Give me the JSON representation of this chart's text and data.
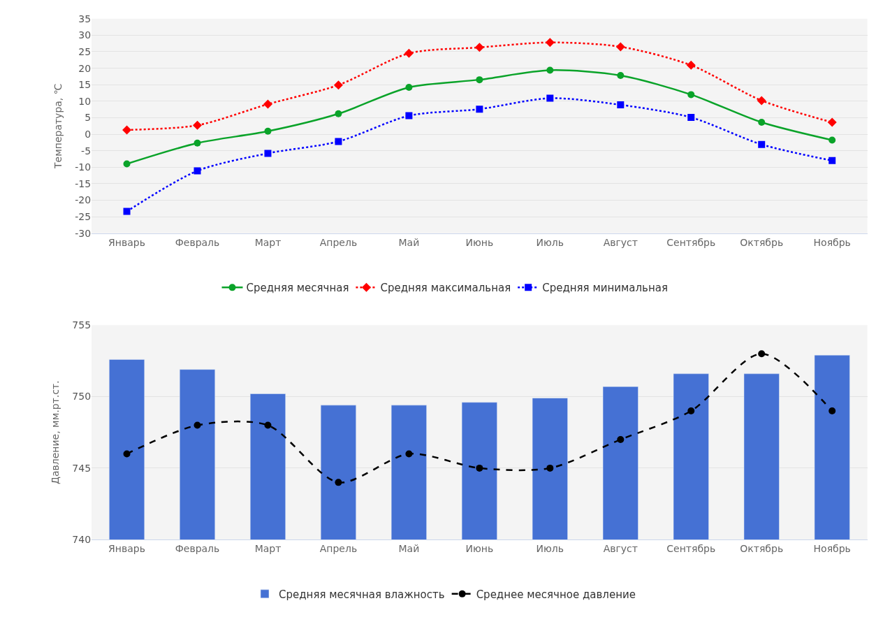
{
  "chart_data": [
    {
      "type": "line",
      "ylabel": "Температура, ℃",
      "categories": [
        "Январь",
        "Февраль",
        "Март",
        "Апрель",
        "Май",
        "Июнь",
        "Июль",
        "Август",
        "Сентябрь",
        "Октябрь",
        "Ноябрь"
      ],
      "ylim": [
        -30,
        35
      ],
      "yticks": [
        -30,
        -25,
        -20,
        -15,
        -10,
        -5,
        0,
        5,
        10,
        15,
        20,
        25,
        30,
        35
      ],
      "grid": "y",
      "legend": "bottom",
      "series": [
        {
          "name": "Средняя месячная",
          "color": "#0aa329",
          "marker": "circle",
          "line_style": "solid",
          "values": [
            -9,
            -2.7,
            0.9,
            6.2,
            14.2,
            16.5,
            19.4,
            17.8,
            12,
            3.6,
            -1.8
          ]
        },
        {
          "name": "Средняя максимальная",
          "color": "#ff0000",
          "marker": "diamond",
          "line_style": "dotted",
          "values": [
            1.3,
            2.7,
            9.1,
            14.9,
            24.5,
            26.3,
            27.8,
            26.5,
            20.9,
            10.2,
            3.6
          ]
        },
        {
          "name": "Средняя минимальная",
          "color": "#0000ff",
          "marker": "square",
          "line_style": "dotted",
          "values": [
            -23.4,
            -11.1,
            -5.8,
            -2.2,
            5.6,
            7.6,
            10.9,
            8.9,
            5.1,
            -3.1,
            -8
          ]
        }
      ]
    },
    {
      "type": "bar",
      "ylabel": "Давление, мм.рт.ст.",
      "categories": [
        "Январь",
        "Февраль",
        "Март",
        "Апрель",
        "Май",
        "Июнь",
        "Июль",
        "Август",
        "Сентябрь",
        "Октябрь",
        "Ноябрь"
      ],
      "ylim": [
        740,
        755
      ],
      "yticks": [
        740,
        745,
        750,
        755
      ],
      "grid": "y",
      "legend": "bottom",
      "series": [
        {
          "name": "Средняя месячная влажность",
          "type": "bar",
          "color": "#4571d4",
          "values": [
            752.6,
            751.9,
            750.2,
            749.4,
            749.4,
            749.6,
            749.9,
            750.7,
            751.6,
            751.6,
            752.9
          ]
        },
        {
          "name": "Среднее месячное давление",
          "type": "line",
          "color": "#000000",
          "marker": "circle",
          "line_style": "dashed",
          "values": [
            746,
            748,
            748,
            744,
            746,
            745,
            745,
            747,
            749,
            753,
            749
          ]
        }
      ]
    }
  ]
}
